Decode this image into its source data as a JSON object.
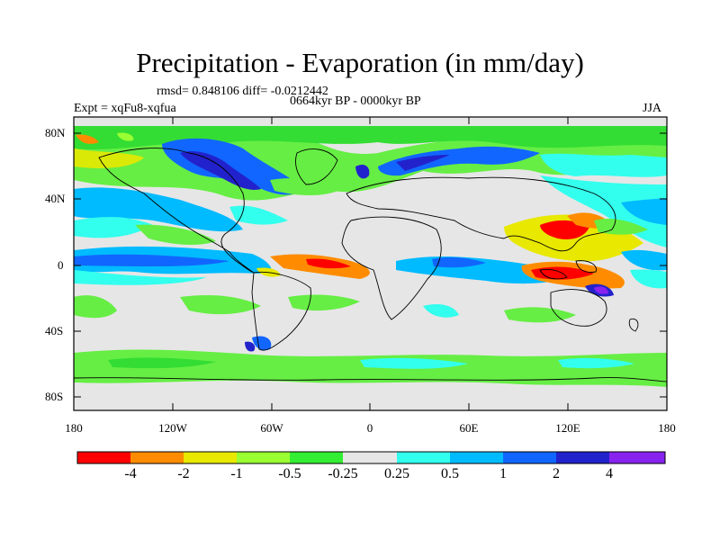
{
  "title": "Precipitation - Evaporation (in mm/day)",
  "stats": "rmsd= 0.848106 diff= -0.0212442",
  "period": "0664kyr BP - 0000kyr BP",
  "experiment": "Expt = xqFu8-xqfua",
  "season": "JJA",
  "lat_labels": [
    "80N",
    "40N",
    "0",
    "40S",
    "80S"
  ],
  "lon_labels": [
    "180",
    "120W",
    "60W",
    "0",
    "60E",
    "120E",
    "180"
  ],
  "colorbar": {
    "labels": [
      "-4",
      "-2",
      "-1",
      "-0.5",
      "-0.25",
      "0.25",
      "0.5",
      "1",
      "2",
      "4"
    ],
    "colors": [
      "#ff0000",
      "#ff8c00",
      "#e8e800",
      "#99ff33",
      "#33ee33",
      "#e6e6e6",
      "#33ffee",
      "#00bbff",
      "#1166ff",
      "#2222cc",
      "#8822ee"
    ]
  }
}
